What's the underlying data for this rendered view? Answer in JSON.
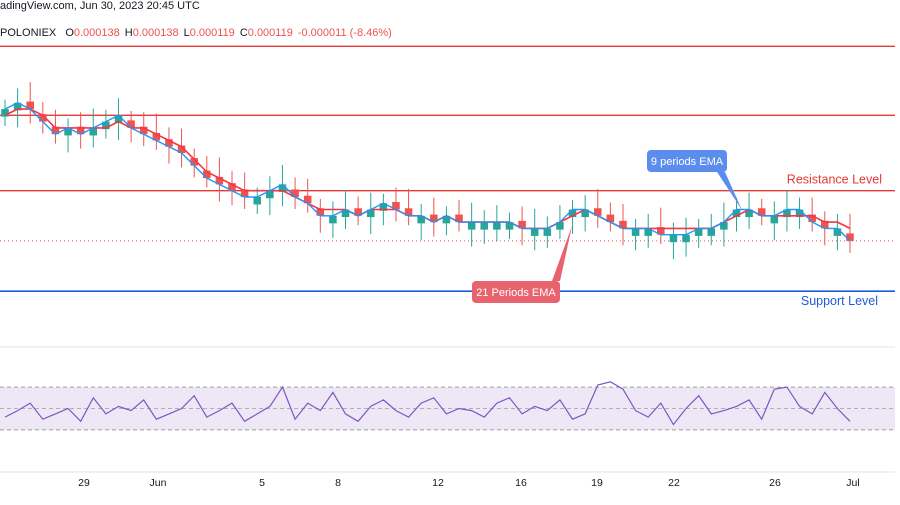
{
  "header": {
    "source_line": "adingView.com, Jun 30, 2023 20:45 UTC",
    "symbol": "POLONIEX",
    "ohlc": [
      {
        "key": "O",
        "value": "0.000138"
      },
      {
        "key": "H",
        "value": "0.000138"
      },
      {
        "key": "L",
        "value": "0.000119"
      },
      {
        "key": "C",
        "value": "0.000119"
      },
      {
        "key": "",
        "value": "-0.000011 (-8.46%)"
      }
    ]
  },
  "colors": {
    "up": "#26a69a",
    "down": "#ef5350",
    "ema9": "#2196f3",
    "ema21": "#f23645",
    "resistance": "#e53935",
    "support": "#1e5bd8",
    "rsi_line": "#7e57c2",
    "rsi_band": "#ede7f6",
    "ema9_badge": "#5b8def",
    "ema21_badge": "#e8636d"
  },
  "chart_data": {
    "type": "line",
    "x_ticks": [
      "29",
      "Jun",
      "5",
      "8",
      "12",
      "16",
      "19",
      "22",
      "26",
      "Jul"
    ],
    "annotations": {
      "resistance_label": "Resistance Level",
      "support_label": "Support Level",
      "ema9_label": "9 periods EMA",
      "ema21_label": "21 Periods EMA"
    },
    "levels": {
      "resistance": [
        0.00015,
        0.000139,
        0.000127
      ],
      "support": 0.000111,
      "last_price": 0.000119
    },
    "price_axis_range": [
      0.000108,
      0.000151
    ],
    "series": [
      {
        "key": "ema9",
        "values": [
          0.00014,
          0.000141,
          0.00014,
          0.000138,
          0.000136,
          0.000137,
          0.000136,
          0.000137,
          0.000138,
          0.000139,
          0.000137,
          0.000136,
          0.000135,
          0.000134,
          0.000133,
          0.000131,
          0.000129,
          0.000128,
          0.000127,
          0.000126,
          0.000126,
          0.000127,
          0.000128,
          0.000126,
          0.000125,
          0.000123,
          0.000123,
          0.000124,
          0.000123,
          0.000124,
          0.000125,
          0.000124,
          0.000123,
          0.000123,
          0.000122,
          0.000123,
          0.000122,
          0.000122,
          0.000122,
          0.000122,
          0.000122,
          0.000121,
          0.000121,
          0.000121,
          0.000122,
          0.000124,
          0.000124,
          0.000123,
          0.000122,
          0.000121,
          0.000121,
          0.000121,
          0.00012,
          0.00012,
          0.00012,
          0.000121,
          0.000121,
          0.000122,
          0.000124,
          0.000124,
          0.000123,
          0.000123,
          0.000124,
          0.000124,
          0.000122,
          0.000121,
          0.000121,
          0.000119
        ]
      },
      {
        "key": "ema21",
        "values": [
          0.000139,
          0.00014,
          0.00014,
          0.000139,
          0.000137,
          0.000137,
          0.000137,
          0.000137,
          0.000137,
          0.000138,
          0.000137,
          0.000137,
          0.000136,
          0.000135,
          0.000134,
          0.000132,
          0.00013,
          0.000129,
          0.000128,
          0.000127,
          0.000127,
          0.000127,
          0.000127,
          0.000126,
          0.000125,
          0.000124,
          0.000124,
          0.000124,
          0.000123,
          0.000124,
          0.000124,
          0.000124,
          0.000123,
          0.000123,
          0.000122,
          0.000123,
          0.000122,
          0.000122,
          0.000122,
          0.000122,
          0.000122,
          0.000121,
          0.000121,
          0.000121,
          0.000122,
          0.000123,
          0.000124,
          0.000123,
          0.000122,
          0.000121,
          0.000121,
          0.000121,
          0.000121,
          0.000121,
          0.000121,
          0.000121,
          0.000121,
          0.000122,
          0.000123,
          0.000124,
          0.000123,
          0.000123,
          0.000123,
          0.000123,
          0.000123,
          0.000122,
          0.000122,
          0.000121
        ]
      }
    ],
    "rsi": {
      "range": [
        0,
        100
      ],
      "band": [
        30,
        70
      ],
      "values": [
        42,
        48,
        55,
        40,
        45,
        50,
        38,
        60,
        45,
        52,
        48,
        58,
        40,
        45,
        50,
        62,
        42,
        48,
        55,
        38,
        45,
        52,
        70,
        40,
        55,
        48,
        65,
        45,
        38,
        52,
        58,
        48,
        42,
        55,
        60,
        45,
        50,
        48,
        42,
        55,
        60,
        45,
        52,
        48,
        58,
        40,
        45,
        72,
        75,
        68,
        48,
        42,
        55,
        35,
        50,
        62,
        45,
        48,
        52,
        58,
        40,
        68,
        70,
        52,
        45,
        65,
        50,
        38
      ]
    }
  }
}
